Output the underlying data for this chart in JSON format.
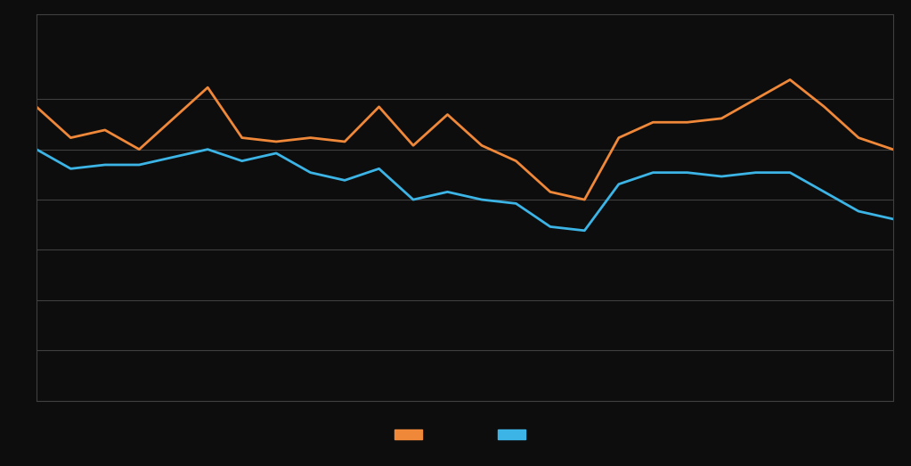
{
  "orange_values": [
    76,
    68,
    70,
    65,
    73,
    81,
    68,
    67,
    68,
    67,
    76,
    66,
    74,
    66,
    62,
    54,
    52,
    68,
    72,
    72,
    73,
    78,
    83,
    76,
    68,
    65
  ],
  "blue_values": [
    65,
    60,
    61,
    61,
    63,
    65,
    62,
    64,
    59,
    57,
    60,
    52,
    54,
    52,
    51,
    45,
    44,
    56,
    59,
    59,
    58,
    59,
    59,
    54,
    49,
    47
  ],
  "orange_color": "#f0883a",
  "blue_color": "#3cb4e5",
  "bg_color": "#0d0d0d",
  "grid_color": "#404040",
  "ylim": [
    0,
    100
  ],
  "yticks": [
    0,
    13,
    26,
    39,
    52,
    65,
    78
  ],
  "line_width": 2.0,
  "legend_orange_label": "",
  "legend_blue_label": ""
}
